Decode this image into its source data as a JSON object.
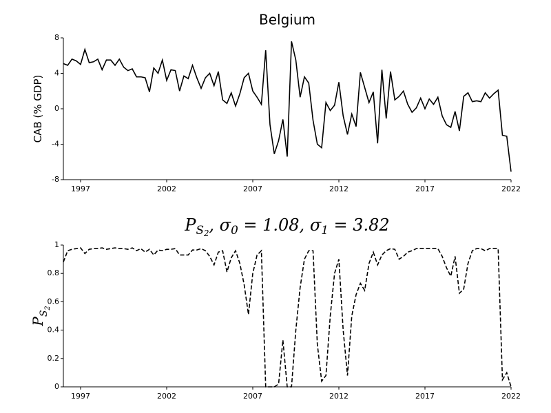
{
  "chart_data": [
    {
      "type": "line",
      "title": "Belgium",
      "y_label": "CAB (% GDP)",
      "xlim": [
        1996,
        2022
      ],
      "xticks": [
        1997,
        2002,
        2007,
        2012,
        2017,
        2022
      ],
      "ylim": [
        -8,
        8
      ],
      "yticks": [
        -8,
        -4,
        0,
        4,
        8
      ],
      "x": [
        1996,
        1996.25,
        1996.5,
        1996.75,
        1997,
        1997.25,
        1997.5,
        1997.75,
        1998,
        1998.25,
        1998.5,
        1998.75,
        1999,
        1999.25,
        1999.5,
        1999.75,
        2000,
        2000.25,
        2000.5,
        2000.75,
        2001,
        2001.25,
        2001.5,
        2001.75,
        2002,
        2002.25,
        2002.5,
        2002.75,
        2003,
        2003.25,
        2003.5,
        2003.75,
        2004,
        2004.25,
        2004.5,
        2004.75,
        2005,
        2005.25,
        2005.5,
        2005.75,
        2006,
        2006.25,
        2006.5,
        2006.75,
        2007,
        2007.25,
        2007.5,
        2007.75,
        2008,
        2008.25,
        2008.5,
        2008.75,
        2009,
        2009.25,
        2009.5,
        2009.75,
        2010,
        2010.25,
        2010.5,
        2010.75,
        2011,
        2011.25,
        2011.5,
        2011.75,
        2012,
        2012.25,
        2012.5,
        2012.75,
        2013,
        2013.25,
        2013.5,
        2013.75,
        2014,
        2014.25,
        2014.5,
        2014.75,
        2015,
        2015.25,
        2015.5,
        2015.75,
        2016,
        2016.25,
        2016.5,
        2016.75,
        2017,
        2017.25,
        2017.5,
        2017.75,
        2018,
        2018.25,
        2018.5,
        2018.75,
        2019,
        2019.25,
        2019.5,
        2019.75,
        2020,
        2020.25,
        2020.5,
        2020.75,
        2021,
        2021.25,
        2021.5,
        2021.75,
        2022
      ],
      "series": [
        {
          "color": "#000000",
          "dash": "solid",
          "values": [
            5.1,
            4.9,
            5.6,
            5.4,
            5.0,
            6.7,
            5.2,
            5.3,
            5.6,
            4.4,
            5.5,
            5.5,
            4.9,
            5.6,
            4.7,
            4.3,
            4.5,
            3.6,
            3.6,
            3.5,
            1.9,
            4.6,
            4.0,
            5.5,
            3.2,
            4.4,
            4.3,
            2.0,
            3.7,
            3.4,
            4.9,
            3.5,
            2.3,
            3.5,
            4.0,
            2.6,
            4.2,
            1.0,
            0.6,
            1.8,
            0.3,
            1.7,
            3.5,
            4.0,
            2.0,
            1.3,
            0.5,
            6.6,
            -1.8,
            -5.1,
            -3.6,
            -1.2,
            -5.4,
            7.6,
            5.5,
            1.3,
            3.6,
            2.9,
            -1.3,
            -4.0,
            -4.4,
            0.7,
            -0.2,
            0.4,
            3.0,
            -0.8,
            -2.9,
            -0.6,
            -2.0,
            4.1,
            2.4,
            0.7,
            1.9,
            -3.9,
            4.4,
            -1.1,
            4.2,
            1.0,
            1.4,
            2.0,
            0.5,
            -0.4,
            0.1,
            1.2,
            0.0,
            1.1,
            0.5,
            1.3,
            -0.8,
            -1.8,
            -2.1,
            -0.3,
            -2.5,
            1.4,
            1.8,
            0.8,
            0.9,
            0.8,
            1.8,
            1.2,
            1.7,
            2.1,
            -3.0,
            -3.1,
            -7.1
          ]
        }
      ]
    },
    {
      "type": "line",
      "title": "P_{S_2}, σ_0 = 1.08, σ_1 = 3.82",
      "y_label": "P_{S_2}",
      "xlim": [
        1996,
        2022
      ],
      "xticks": [
        1997,
        2002,
        2007,
        2012,
        2017,
        2022
      ],
      "ylim": [
        0,
        1
      ],
      "yticks": [
        0,
        0.2,
        0.4,
        0.6,
        0.8,
        1
      ],
      "x": [
        1996,
        1996.25,
        1996.5,
        1996.75,
        1997,
        1997.25,
        1997.5,
        1997.75,
        1998,
        1998.25,
        1998.5,
        1998.75,
        1999,
        1999.25,
        1999.5,
        1999.75,
        2000,
        2000.25,
        2000.5,
        2000.75,
        2001,
        2001.25,
        2001.5,
        2001.75,
        2002,
        2002.25,
        2002.5,
        2002.75,
        2003,
        2003.25,
        2003.5,
        2003.75,
        2004,
        2004.25,
        2004.5,
        2004.75,
        2005,
        2005.25,
        2005.5,
        2005.75,
        2006,
        2006.25,
        2006.5,
        2006.75,
        2007,
        2007.25,
        2007.5,
        2007.75,
        2008,
        2008.25,
        2008.5,
        2008.75,
        2009,
        2009.25,
        2009.5,
        2009.75,
        2010,
        2010.25,
        2010.5,
        2010.75,
        2011,
        2011.25,
        2011.5,
        2011.75,
        2012,
        2012.25,
        2012.5,
        2012.75,
        2013,
        2013.25,
        2013.5,
        2013.75,
        2014,
        2014.25,
        2014.5,
        2014.75,
        2015,
        2015.25,
        2015.5,
        2015.75,
        2016,
        2016.25,
        2016.5,
        2016.75,
        2017,
        2017.25,
        2017.5,
        2017.75,
        2018,
        2018.25,
        2018.5,
        2018.75,
        2019,
        2019.25,
        2019.5,
        2019.75,
        2020,
        2020.25,
        2020.5,
        2020.75,
        2021,
        2021.25,
        2021.5,
        2021.75,
        2022
      ],
      "series": [
        {
          "color": "#000000",
          "dash": "dashed",
          "values": [
            0.88,
            0.96,
            0.97,
            0.975,
            0.98,
            0.94,
            0.97,
            0.975,
            0.975,
            0.98,
            0.97,
            0.975,
            0.98,
            0.975,
            0.975,
            0.97,
            0.98,
            0.96,
            0.975,
            0.95,
            0.97,
            0.93,
            0.965,
            0.96,
            0.97,
            0.97,
            0.975,
            0.93,
            0.93,
            0.93,
            0.965,
            0.965,
            0.975,
            0.96,
            0.92,
            0.86,
            0.95,
            0.96,
            0.81,
            0.91,
            0.96,
            0.87,
            0.72,
            0.51,
            0.8,
            0.93,
            0.96,
            0.0,
            0.0,
            0.0,
            0.02,
            0.33,
            0.0,
            0.0,
            0.4,
            0.7,
            0.9,
            0.96,
            0.96,
            0.3,
            0.04,
            0.08,
            0.5,
            0.8,
            0.9,
            0.4,
            0.08,
            0.5,
            0.65,
            0.73,
            0.68,
            0.87,
            0.95,
            0.86,
            0.93,
            0.96,
            0.975,
            0.97,
            0.9,
            0.92,
            0.95,
            0.96,
            0.975,
            0.975,
            0.975,
            0.975,
            0.975,
            0.975,
            0.92,
            0.84,
            0.78,
            0.92,
            0.66,
            0.69,
            0.87,
            0.96,
            0.975,
            0.975,
            0.96,
            0.975,
            0.975,
            0.975,
            0.05,
            0.1,
            0.0
          ]
        }
      ]
    }
  ]
}
